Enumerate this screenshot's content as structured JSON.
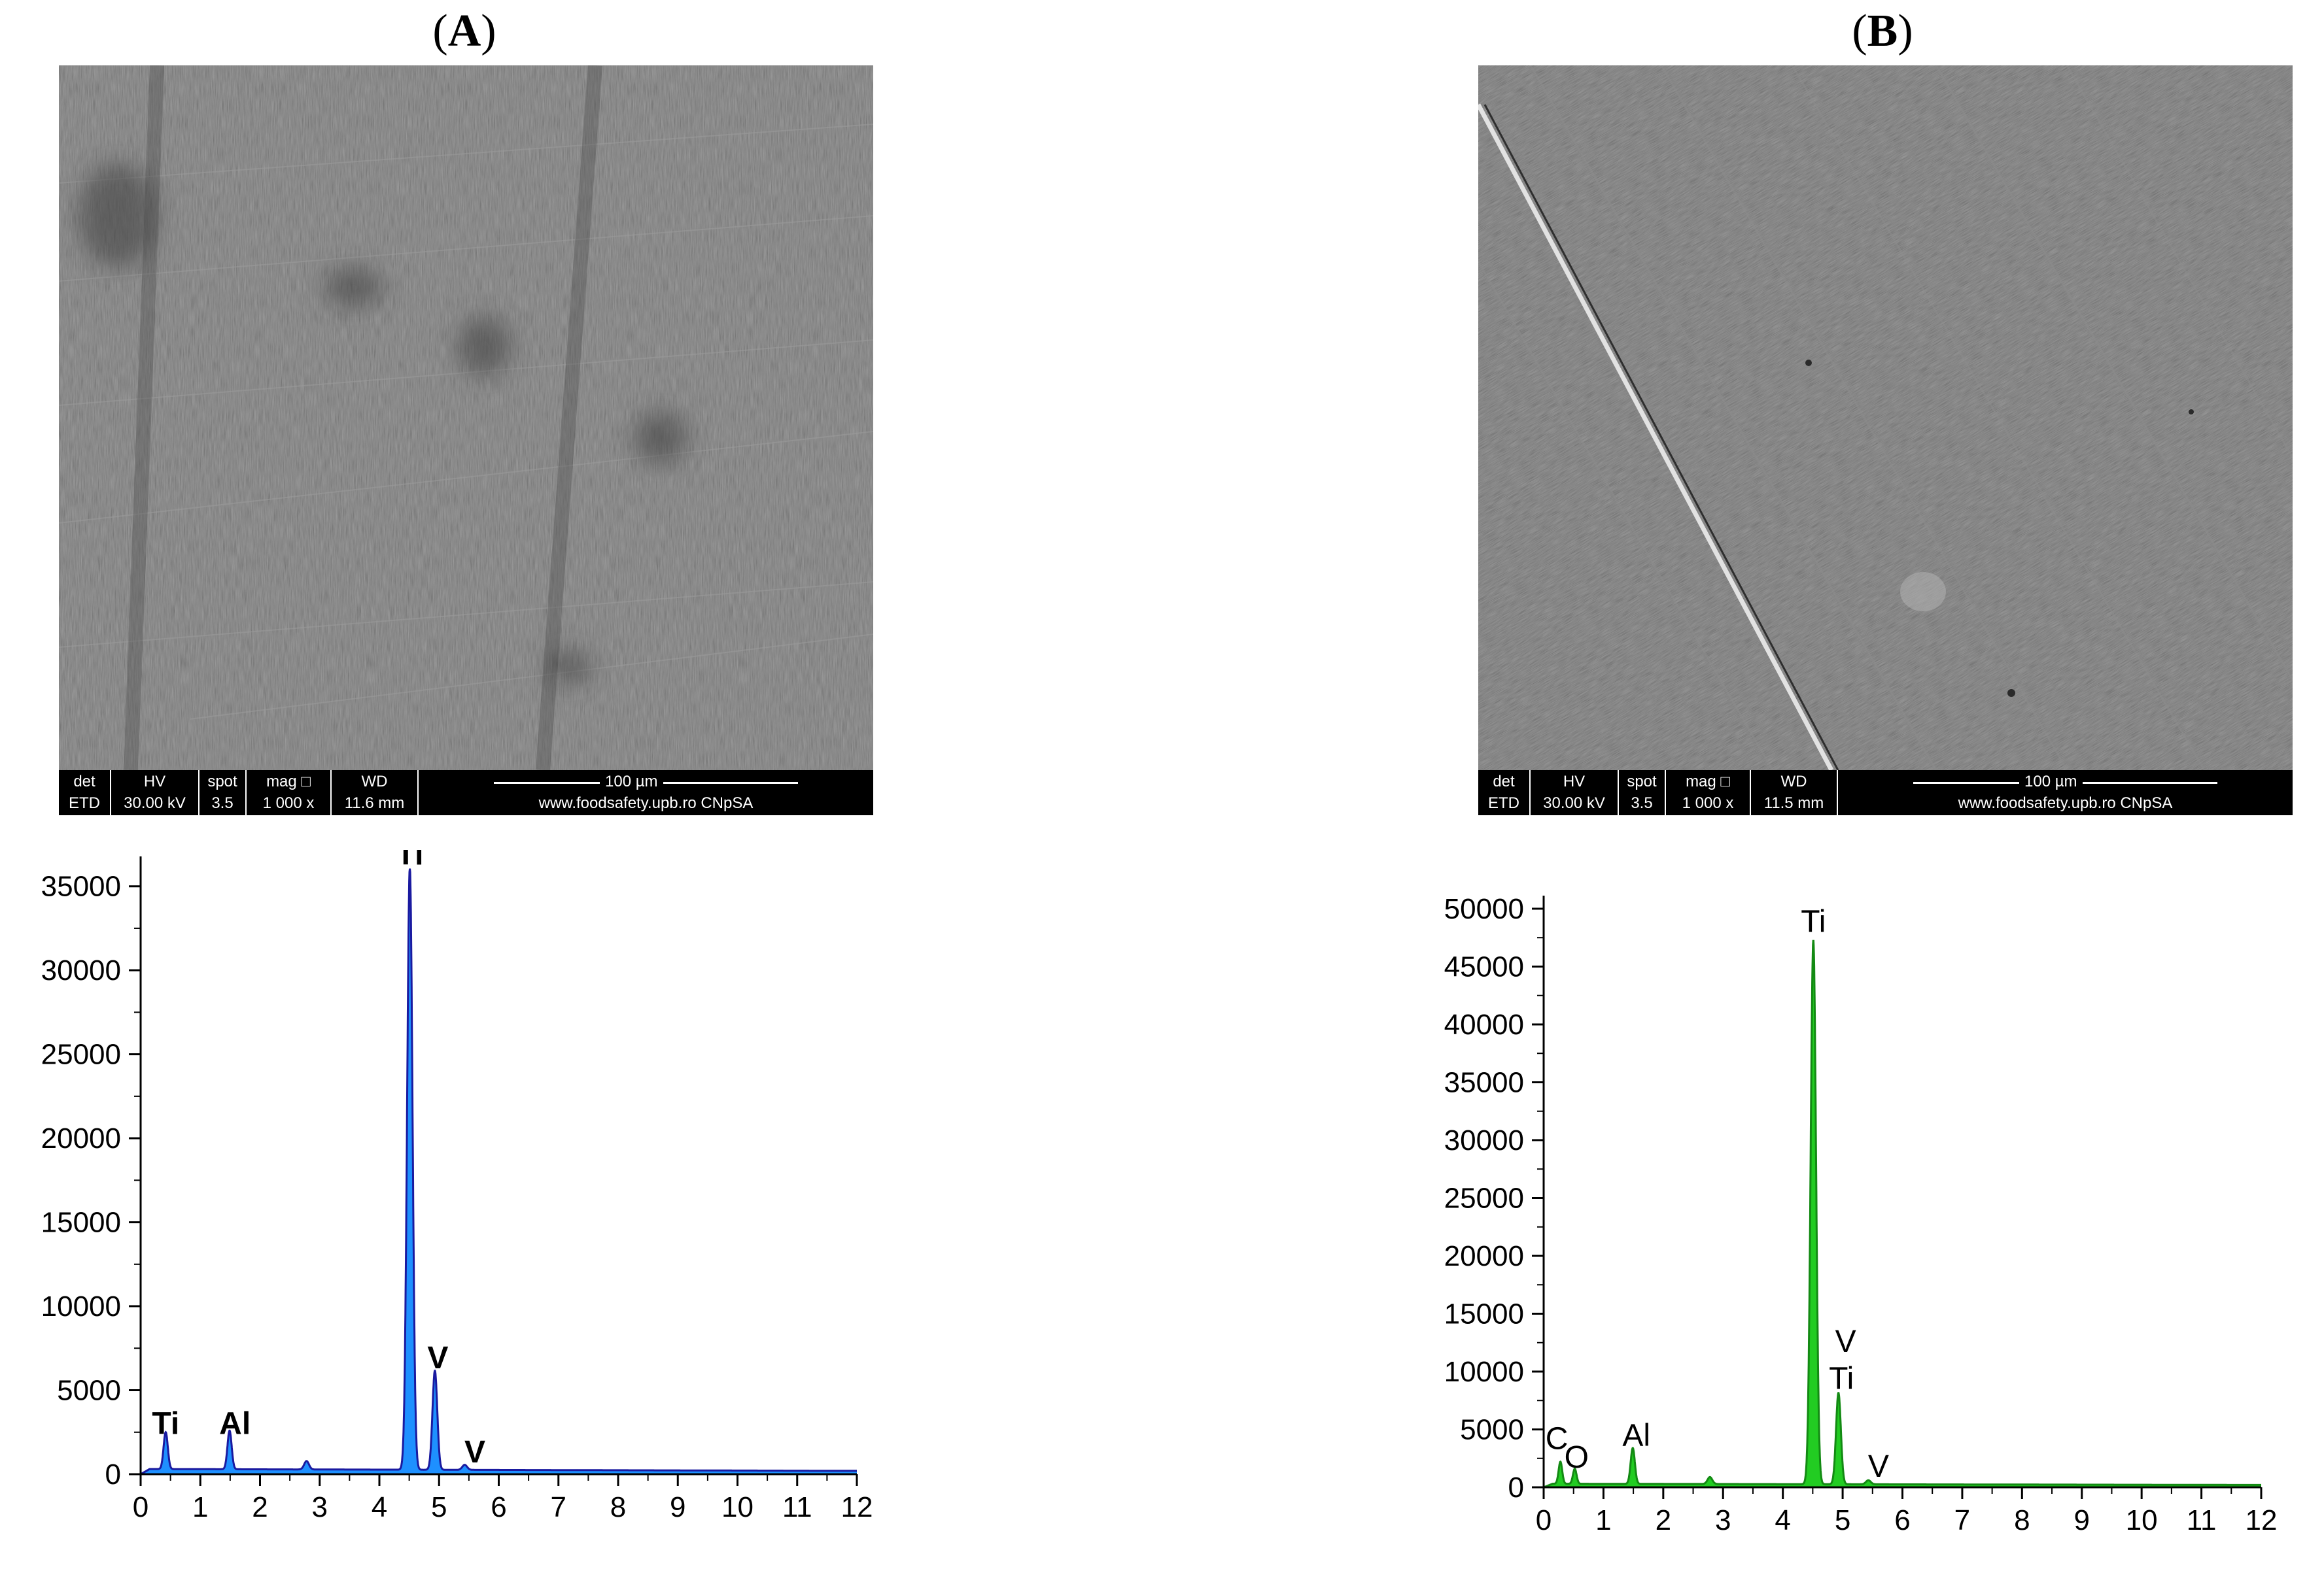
{
  "panels": [
    {
      "label": "A",
      "sem": {
        "databar": {
          "det": {
            "header": "det",
            "value": "ETD"
          },
          "hv": {
            "header": "HV",
            "value": "30.00 kV"
          },
          "spot": {
            "header": "spot",
            "value": "3.5"
          },
          "mag": {
            "header": "mag □",
            "value": "1 000 x"
          },
          "wd": {
            "header": "WD",
            "value": "11.6 mm"
          },
          "scale": "100 µm",
          "url": "www.foodsafety.upb.ro CNpSA"
        }
      }
    },
    {
      "label": "B",
      "sem": {
        "databar": {
          "det": {
            "header": "det",
            "value": "ETD"
          },
          "hv": {
            "header": "HV",
            "value": "30.00 kV"
          },
          "spot": {
            "header": "spot",
            "value": "3.5"
          },
          "mag": {
            "header": "mag □",
            "value": "1 000 x"
          },
          "wd": {
            "header": "WD",
            "value": "11.5 mm"
          },
          "scale": "100 µm",
          "url": "www.foodsafety.upb.ro CNpSA"
        }
      }
    }
  ],
  "chart_data": [
    {
      "type": "line",
      "panel": "A",
      "title": "",
      "xlabel": "",
      "ylabel": "",
      "xlim": [
        0,
        12
      ],
      "ylim": [
        0,
        36000
      ],
      "xticks": [
        0,
        1,
        2,
        3,
        4,
        5,
        6,
        7,
        8,
        9,
        10,
        11,
        12
      ],
      "yticks": [
        0,
        5000,
        10000,
        15000,
        20000,
        25000,
        30000,
        35000
      ],
      "grid": false,
      "fill_color": "#1E90FF",
      "line_color": "#1a1aa0",
      "bold_labels": true,
      "baseline": 300,
      "peaks": [
        {
          "x": 0.42,
          "y": 2200,
          "w": 0.035
        },
        {
          "x": 1.49,
          "y": 2300,
          "w": 0.035
        },
        {
          "x": 2.78,
          "y": 500,
          "w": 0.04
        },
        {
          "x": 4.51,
          "y": 35900,
          "w": 0.045
        },
        {
          "x": 4.93,
          "y": 5900,
          "w": 0.04
        },
        {
          "x": 5.43,
          "y": 300,
          "w": 0.04
        }
      ],
      "annotations": [
        {
          "text": "Ti",
          "x": 0.42,
          "y": 2400
        },
        {
          "text": "Al",
          "x": 1.58,
          "y": 2400
        },
        {
          "text": "Ti",
          "x": 4.51,
          "y": 36300
        },
        {
          "text": "V",
          "x": 4.98,
          "y": 6300
        },
        {
          "text": "V",
          "x": 5.6,
          "y": 700
        }
      ]
    },
    {
      "type": "line",
      "panel": "B",
      "title": "",
      "xlabel": "",
      "ylabel": "",
      "xlim": [
        0,
        12
      ],
      "ylim": [
        0,
        50000
      ],
      "xticks": [
        0,
        1,
        2,
        3,
        4,
        5,
        6,
        7,
        8,
        9,
        10,
        11,
        12
      ],
      "yticks": [
        0,
        5000,
        10000,
        15000,
        20000,
        25000,
        30000,
        35000,
        40000,
        45000,
        50000
      ],
      "grid": false,
      "fill_color": "#22CC22",
      "line_color": "#138a13",
      "bold_labels": false,
      "baseline": 300,
      "peaks": [
        {
          "x": 0.28,
          "y": 1900,
          "w": 0.03
        },
        {
          "x": 0.52,
          "y": 1300,
          "w": 0.03
        },
        {
          "x": 1.49,
          "y": 3100,
          "w": 0.035
        },
        {
          "x": 2.78,
          "y": 600,
          "w": 0.04
        },
        {
          "x": 4.51,
          "y": 47000,
          "w": 0.045
        },
        {
          "x": 4.93,
          "y": 7900,
          "w": 0.04
        },
        {
          "x": 5.43,
          "y": 350,
          "w": 0.04
        }
      ],
      "annotations": [
        {
          "text": "C",
          "x": 0.22,
          "y": 3300
        },
        {
          "text": "O",
          "x": 0.55,
          "y": 1700
        },
        {
          "text": "Al",
          "x": 1.55,
          "y": 3600
        },
        {
          "text": "Ti",
          "x": 4.51,
          "y": 48000
        },
        {
          "text": "V",
          "x": 5.05,
          "y": 11700
        },
        {
          "text": "Ti",
          "x": 4.98,
          "y": 8500
        },
        {
          "text": "V",
          "x": 5.6,
          "y": 900
        }
      ]
    }
  ]
}
